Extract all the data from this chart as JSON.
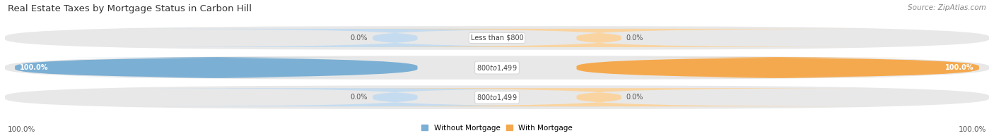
{
  "title": "Real Estate Taxes by Mortgage Status in Carbon Hill",
  "source": "Source: ZipAtlas.com",
  "bars": [
    {
      "label": "Less than $800",
      "without_mortgage": 0.0,
      "with_mortgage": 0.0
    },
    {
      "label": "$800 to $1,499",
      "without_mortgage": 100.0,
      "with_mortgage": 100.0
    },
    {
      "label": "$800 to $1,499",
      "without_mortgage": 0.0,
      "with_mortgage": 0.0
    }
  ],
  "color_without": "#7BAFD4",
  "color_with": "#F5A94E",
  "color_without_light": "#C5DCF0",
  "color_with_light": "#FAD4A0",
  "bar_bg_color": "#E8E8E8",
  "title_fontsize": 9.5,
  "source_fontsize": 7.5,
  "label_fontsize": 7.0,
  "tick_fontsize": 7.5,
  "legend_fontsize": 7.5,
  "legend_labels": [
    "Without Mortgage",
    "With Mortgage"
  ],
  "bar_rows": 3
}
